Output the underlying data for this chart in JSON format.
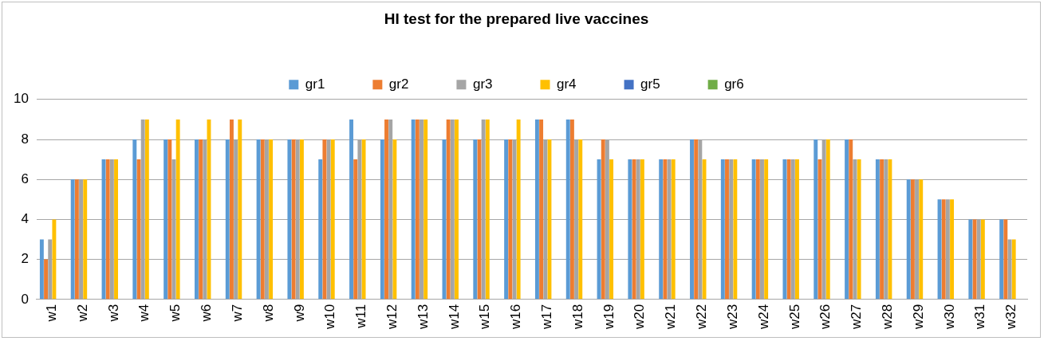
{
  "chart_data": {
    "type": "bar",
    "title": "HI test for the prepared live vaccines",
    "categories": [
      "w1",
      "w2",
      "w3",
      "w4",
      "w5",
      "w6",
      "w7",
      "w8",
      "w9",
      "w10",
      "w11",
      "w12",
      "w13",
      "w14",
      "w15",
      "w16",
      "w17",
      "w18",
      "w19",
      "w20",
      "w21",
      "w22",
      "w23",
      "w24",
      "w25",
      "w26",
      "w27",
      "w28",
      "w29",
      "w30",
      "w31",
      "w32"
    ],
    "series": [
      {
        "name": "gr1",
        "color": "#5b9bd5",
        "values": [
          3,
          6,
          7,
          8,
          8,
          8,
          8,
          8,
          8,
          7,
          9,
          8,
          9,
          8,
          8,
          8,
          9,
          9,
          7,
          7,
          7,
          8,
          7,
          7,
          7,
          8,
          8,
          7,
          6,
          5,
          4,
          4
        ]
      },
      {
        "name": "gr2",
        "color": "#ed7d31",
        "values": [
          2,
          6,
          7,
          7,
          8,
          8,
          9,
          8,
          8,
          8,
          7,
          9,
          9,
          9,
          8,
          8,
          9,
          9,
          8,
          7,
          7,
          8,
          7,
          7,
          7,
          7,
          8,
          7,
          6,
          5,
          4,
          4
        ]
      },
      {
        "name": "gr3",
        "color": "#a5a5a5",
        "values": [
          3,
          6,
          7,
          9,
          7,
          8,
          8,
          8,
          8,
          8,
          8,
          9,
          9,
          9,
          9,
          8,
          8,
          8,
          8,
          7,
          7,
          8,
          7,
          7,
          7,
          8,
          7,
          7,
          6,
          5,
          4,
          3
        ]
      },
      {
        "name": "gr4",
        "color": "#ffc000",
        "values": [
          4,
          6,
          7,
          9,
          9,
          9,
          9,
          8,
          8,
          8,
          8,
          8,
          9,
          9,
          9,
          9,
          8,
          8,
          7,
          7,
          7,
          7,
          7,
          7,
          7,
          8,
          7,
          7,
          6,
          5,
          4,
          3
        ]
      },
      {
        "name": "gr5",
        "color": "#4472c4",
        "values": [
          null,
          null,
          null,
          null,
          null,
          null,
          null,
          null,
          null,
          null,
          null,
          null,
          null,
          null,
          null,
          null,
          null,
          null,
          null,
          null,
          null,
          null,
          null,
          null,
          null,
          null,
          null,
          null,
          null,
          null,
          null,
          null
        ]
      },
      {
        "name": "gr6",
        "color": "#70ad47",
        "values": [
          null,
          null,
          null,
          null,
          null,
          null,
          null,
          null,
          null,
          null,
          null,
          null,
          null,
          null,
          null,
          null,
          null,
          null,
          null,
          null,
          null,
          null,
          null,
          null,
          null,
          null,
          null,
          null,
          null,
          null,
          null,
          null
        ]
      }
    ],
    "ylim": [
      0,
      10
    ],
    "yticks": [
      0,
      2,
      4,
      6,
      8,
      10
    ],
    "grid": "y",
    "legend": "top"
  }
}
